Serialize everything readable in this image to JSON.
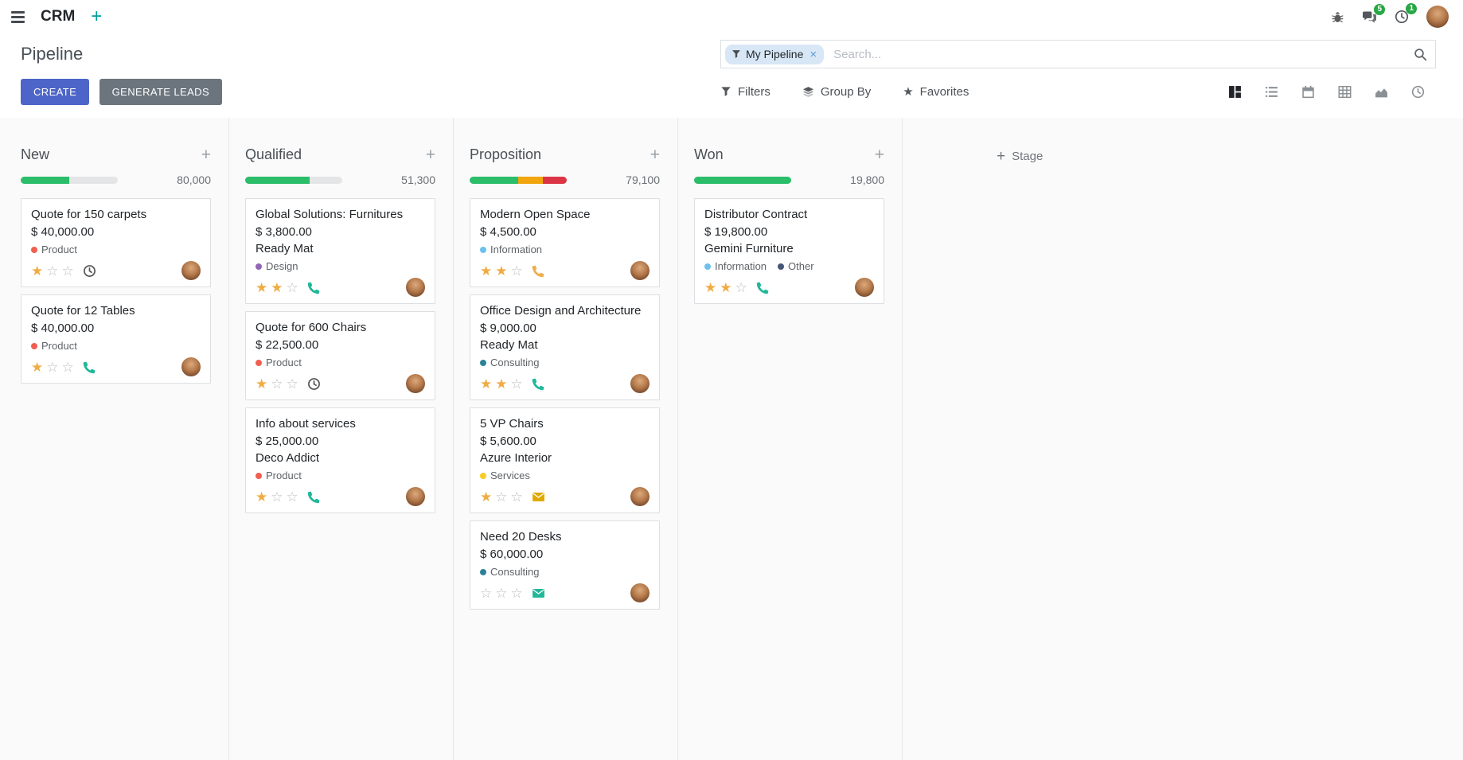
{
  "colors": {
    "primary_button": "#4d65c8",
    "secondary_button": "#6c757d",
    "badge_green": "#28a745",
    "star_gold": "#f0ac44",
    "progress_green": "#2bbd69",
    "progress_yellow": "#f2a60d",
    "progress_red": "#dc3545"
  },
  "navbar": {
    "app_name": "CRM",
    "add_symbol": "+",
    "messages_badge": "5",
    "activities_badge": "1"
  },
  "control_panel": {
    "title": "Pipeline",
    "create_label": "CREATE",
    "generate_leads_label": "GENERATE LEADS",
    "filters_label": "Filters",
    "group_by_label": "Group By",
    "favorites_label": "Favorites",
    "search": {
      "facet_label": "My Pipeline",
      "facet_remove": "×",
      "placeholder": "Search..."
    }
  },
  "view_switcher": [
    {
      "name": "kanban",
      "active": true
    },
    {
      "name": "list",
      "active": false
    },
    {
      "name": "calendar",
      "active": false
    },
    {
      "name": "pivot",
      "active": false
    },
    {
      "name": "graph",
      "active": false
    },
    {
      "name": "activity",
      "active": false
    }
  ],
  "kanban": {
    "add_stage_label": "Stage",
    "columns": [
      {
        "name": "New",
        "count": "80,000",
        "progress": [
          {
            "color": "#2bbd69",
            "pct": 50
          }
        ],
        "cards": [
          {
            "title": "Quote for 150 carpets",
            "amount": "$ 40,000.00",
            "partner": null,
            "tags": [
              {
                "label": "Product",
                "color": "#f06050"
              }
            ],
            "stars": 1,
            "activity": {
              "icon": "clock",
              "color": "#555555"
            }
          },
          {
            "title": "Quote for 12 Tables",
            "amount": "$ 40,000.00",
            "partner": null,
            "tags": [
              {
                "label": "Product",
                "color": "#f06050"
              }
            ],
            "stars": 1,
            "activity": {
              "icon": "phone",
              "color": "#21b799"
            }
          }
        ]
      },
      {
        "name": "Qualified",
        "count": "51,300",
        "progress": [
          {
            "color": "#2bbd69",
            "pct": 66
          }
        ],
        "cards": [
          {
            "title": "Global Solutions: Furnitures",
            "amount": "$ 3,800.00",
            "partner": "Ready Mat",
            "tags": [
              {
                "label": "Design",
                "color": "#9365b8"
              }
            ],
            "stars": 2,
            "activity": {
              "icon": "phone",
              "color": "#21b799"
            }
          },
          {
            "title": "Quote for 600 Chairs",
            "amount": "$ 22,500.00",
            "partner": null,
            "tags": [
              {
                "label": "Product",
                "color": "#f06050"
              }
            ],
            "stars": 1,
            "activity": {
              "icon": "clock",
              "color": "#555555"
            }
          },
          {
            "title": "Info about services",
            "amount": "$ 25,000.00",
            "partner": "Deco Addict",
            "tags": [
              {
                "label": "Product",
                "color": "#f06050"
              }
            ],
            "stars": 1,
            "activity": {
              "icon": "phone",
              "color": "#21b799"
            }
          }
        ]
      },
      {
        "name": "Proposition",
        "count": "79,100",
        "progress": [
          {
            "color": "#2bbd69",
            "pct": 50
          },
          {
            "color": "#f2a60d",
            "pct": 25
          },
          {
            "color": "#dc3545",
            "pct": 25
          }
        ],
        "cards": [
          {
            "title": "Modern Open Space",
            "amount": "$ 4,500.00",
            "partner": null,
            "tags": [
              {
                "label": "Information",
                "color": "#6cc1ed"
              }
            ],
            "stars": 2,
            "activity": {
              "icon": "phone",
              "color": "#f0ad4e"
            }
          },
          {
            "title": "Office Design and Architecture",
            "amount": "$ 9,000.00",
            "partner": "Ready Mat",
            "tags": [
              {
                "label": "Consulting",
                "color": "#2c8397"
              }
            ],
            "stars": 2,
            "activity": {
              "icon": "phone",
              "color": "#21b799"
            }
          },
          {
            "title": "5 VP Chairs",
            "amount": "$ 5,600.00",
            "partner": "Azure Interior",
            "tags": [
              {
                "label": "Services",
                "color": "#f7cd1f"
              }
            ],
            "stars": 1,
            "activity": {
              "icon": "envelope",
              "color": "#e0a800"
            }
          },
          {
            "title": "Need 20 Desks",
            "amount": "$ 60,000.00",
            "partner": null,
            "tags": [
              {
                "label": "Consulting",
                "color": "#2c8397"
              }
            ],
            "stars": 0,
            "activity": {
              "icon": "envelope",
              "color": "#21b799"
            }
          }
        ]
      },
      {
        "name": "Won",
        "count": "19,800",
        "progress": [
          {
            "color": "#2bbd69",
            "pct": 100
          }
        ],
        "cards": [
          {
            "title": "Distributor Contract",
            "amount": "$ 19,800.00",
            "partner": "Gemini Furniture",
            "tags": [
              {
                "label": "Information",
                "color": "#6cc1ed"
              },
              {
                "label": "Other",
                "color": "#475577"
              }
            ],
            "stars": 2,
            "activity": {
              "icon": "phone",
              "color": "#21b799"
            }
          }
        ]
      }
    ]
  }
}
